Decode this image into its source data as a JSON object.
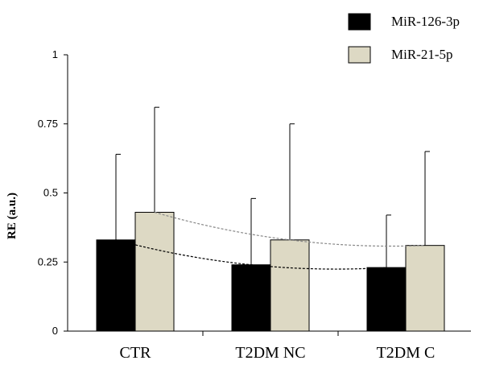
{
  "chart_data": {
    "type": "bar",
    "title": "",
    "xlabel": "",
    "ylabel": "RE  (a.u.)",
    "ylim": [
      0,
      1
    ],
    "yticks": [
      0,
      0.25,
      0.5,
      0.75,
      1
    ],
    "ytick_labels": [
      "0",
      "0.25",
      "0.5",
      "0.75",
      "1"
    ],
    "categories": [
      "CTR",
      "T2DM NC",
      "T2DM C"
    ],
    "series": [
      {
        "name": "MiR-126-3p",
        "color": "#000000",
        "values": [
          0.33,
          0.24,
          0.23
        ],
        "error_upper": [
          0.64,
          0.48,
          0.42
        ]
      },
      {
        "name": "MiR-21-5p",
        "color": "#ddd9c4",
        "values": [
          0.43,
          0.33,
          0.31
        ],
        "error_upper": [
          0.81,
          0.75,
          0.65
        ]
      }
    ],
    "trendlines": [
      {
        "series": "MiR-126-3p",
        "style": "dashed",
        "color": "#000000"
      },
      {
        "series": "MiR-21-5p",
        "style": "dashed",
        "color": "#888888"
      }
    ],
    "legend_position": "top-right"
  }
}
